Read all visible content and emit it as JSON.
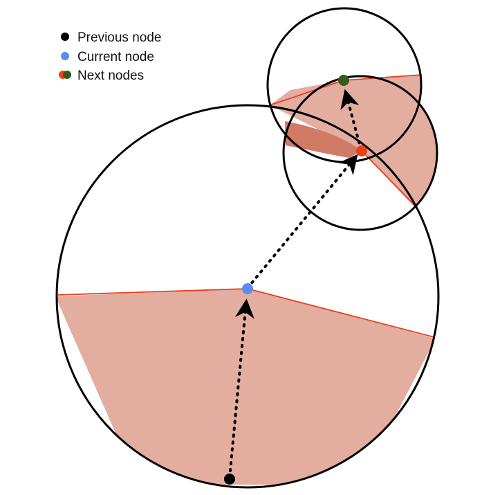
{
  "legend": {
    "items": [
      {
        "label": "Previous node",
        "color": "#000000"
      },
      {
        "label": "Current node",
        "color": "#5b8def"
      },
      {
        "label": "Next nodes",
        "colors": [
          "#e8401c",
          "#345a1d"
        ]
      }
    ]
  },
  "colors": {
    "outline": "#000000",
    "wedge_fill": "#e3ada0",
    "wedge_overlap_fill": "#d17a66",
    "wedge_edge": "#e8401c",
    "previous_node": "#000000",
    "current_node": "#5b8def",
    "next_node_red": "#e8401c",
    "next_node_green": "#345a1d"
  }
}
